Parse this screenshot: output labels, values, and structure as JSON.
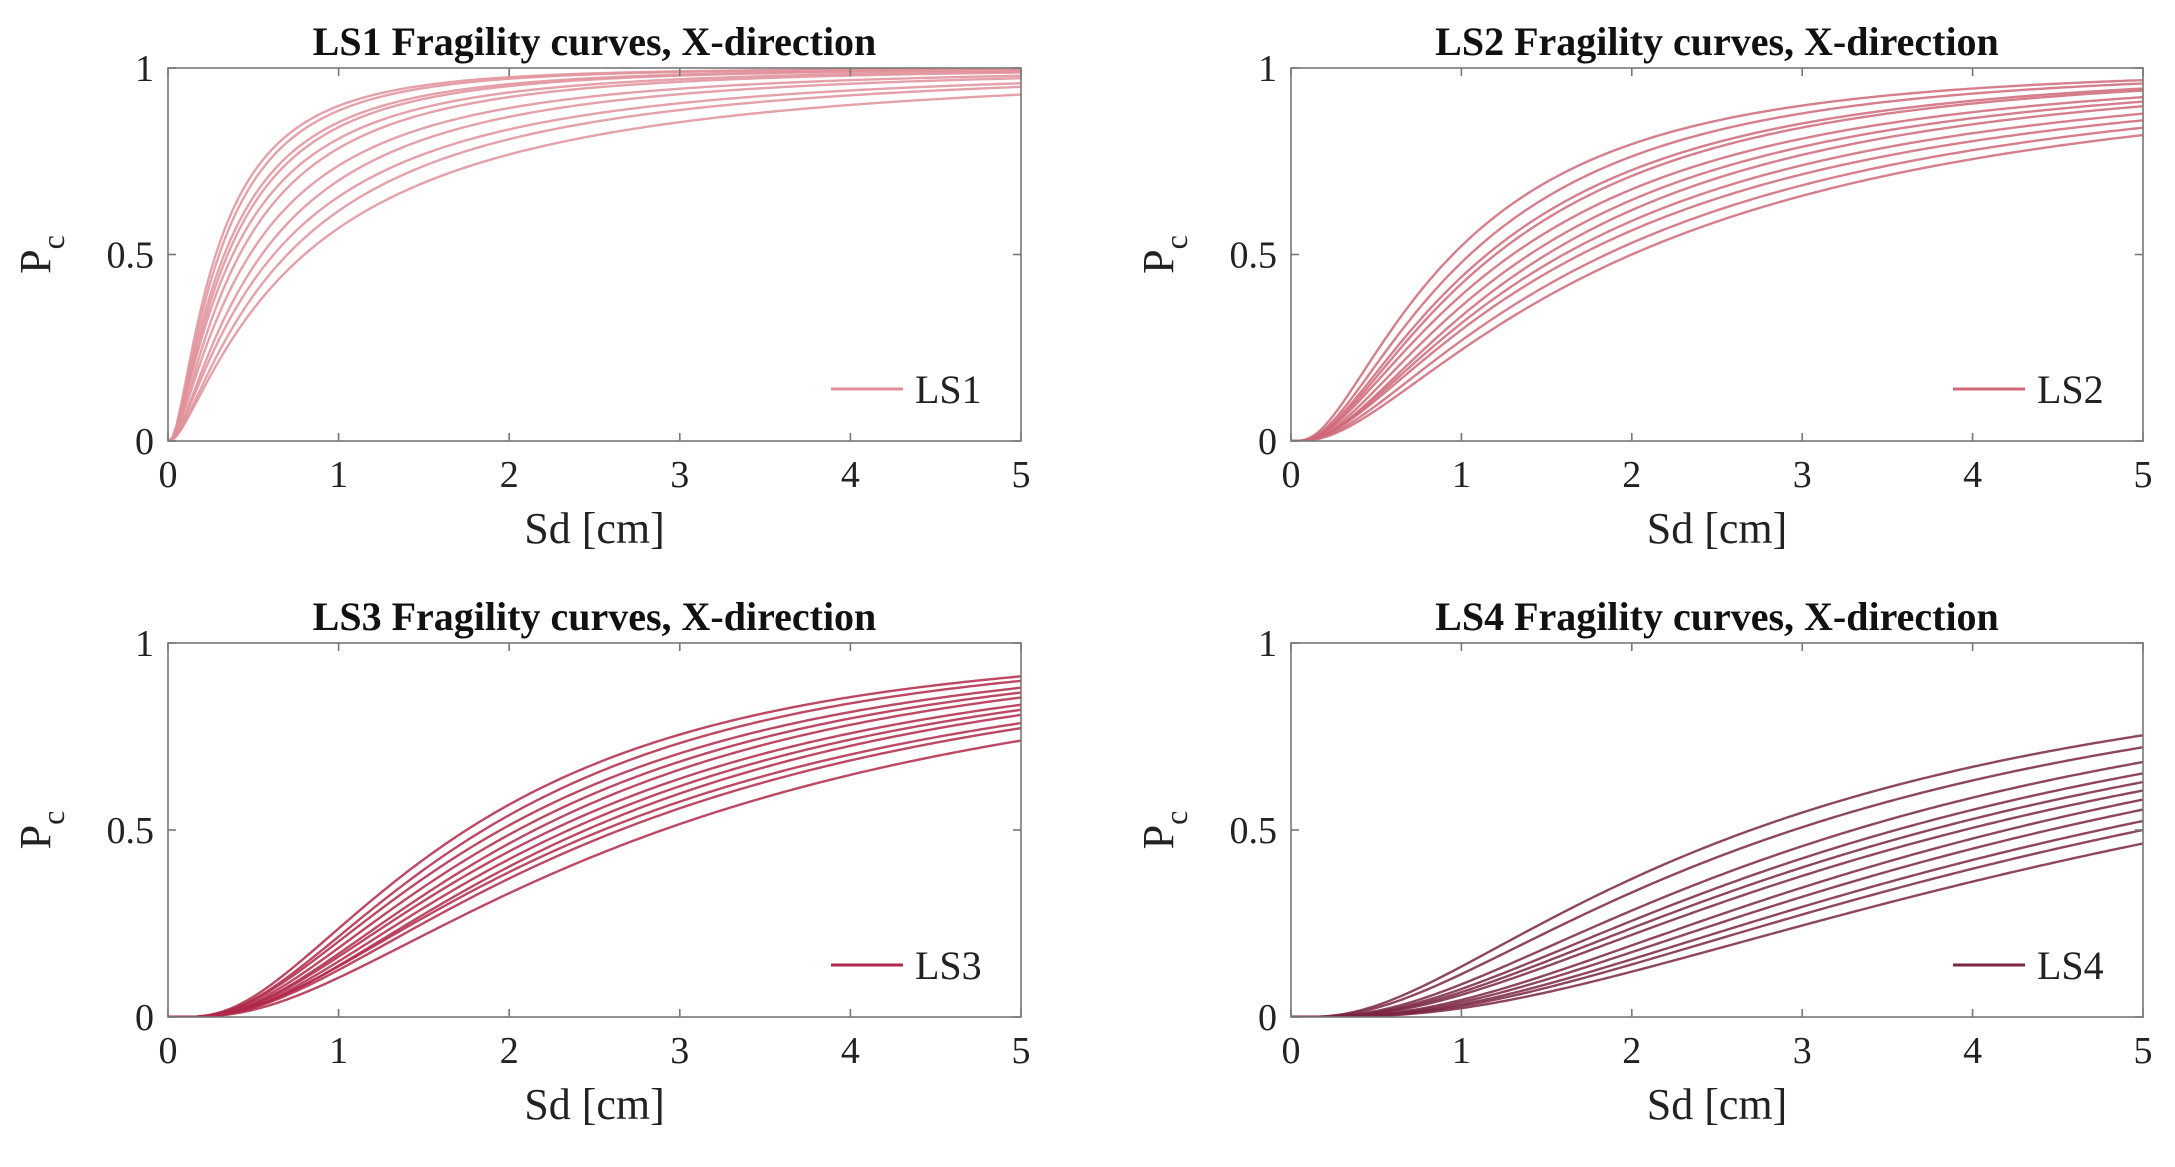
{
  "chart_data": [
    {
      "type": "line",
      "title": "LS1 Fragility curves, X-direction",
      "xlabel": "Sd [cm]",
      "ylabel": "P",
      "ylabel_sub": "c",
      "xlim": [
        0,
        5
      ],
      "ylim": [
        0,
        1
      ],
      "xticks": [
        "0",
        "1",
        "2",
        "3",
        "4",
        "5"
      ],
      "yticks": [
        "0",
        "0.5",
        "1"
      ],
      "legend": "LS1",
      "legend_location": "lower-right",
      "color": "#e0909a",
      "series_note": "lognormal fragility curves, median Sd (cm) and dispersion beta",
      "medians": [
        0.28,
        0.3,
        0.33,
        0.35,
        0.38,
        0.42,
        0.48,
        0.55,
        0.62,
        0.7,
        0.8
      ],
      "betas": [
        1.0,
        1.0,
        1.05,
        1.05,
        1.1,
        1.1,
        1.15,
        1.15,
        1.2,
        1.2,
        1.25
      ]
    },
    {
      "type": "line",
      "title": "LS2 Fragility curves,  X-direction",
      "xlabel": "Sd [cm]",
      "ylabel": "P",
      "ylabel_sub": "c",
      "xlim": [
        0,
        5
      ],
      "ylim": [
        0,
        1
      ],
      "xticks": [
        "0",
        "1",
        "2",
        "3",
        "4",
        "5"
      ],
      "yticks": [
        "0",
        "0.5",
        "1"
      ],
      "legend": "LS2",
      "legend_location": "lower-right",
      "color": "#cf6878",
      "series_note": "lognormal fragility curves, median Sd (cm) and dispersion beta",
      "medians": [
        0.95,
        1.05,
        1.15,
        1.2,
        1.3,
        1.4,
        1.5,
        1.6,
        1.7,
        1.85,
        2.0
      ],
      "betas": [
        0.9,
        0.9,
        0.92,
        0.92,
        0.95,
        0.95,
        0.95,
        0.98,
        1.0,
        1.0,
        1.0
      ]
    },
    {
      "type": "line",
      "title": "LS3 Fragility curves,  X-direction",
      "xlabel": "Sd [cm]",
      "ylabel": "P",
      "ylabel_sub": "c",
      "xlim": [
        0,
        5
      ],
      "ylim": [
        0,
        1
      ],
      "xticks": [
        "0",
        "1",
        "2",
        "3",
        "4",
        "5"
      ],
      "yticks": [
        "0",
        "0.5",
        "1"
      ],
      "legend": "LS3",
      "legend_location": "lower-right",
      "color": "#b02848",
      "series_note": "lognormal fragility curves, median Sd (cm) and dispersion beta",
      "medians": [
        1.75,
        1.85,
        1.95,
        2.05,
        2.15,
        2.25,
        2.35,
        2.45,
        2.55,
        2.65,
        2.9
      ],
      "betas": [
        0.78,
        0.78,
        0.8,
        0.8,
        0.8,
        0.82,
        0.82,
        0.82,
        0.85,
        0.85,
        0.85
      ]
    },
    {
      "type": "line",
      "title": "LS4 Fragility curves,  X-direction",
      "xlabel": "Sd [cm]",
      "ylabel": "P",
      "ylabel_sub": "c",
      "xlim": [
        0,
        5
      ],
      "ylim": [
        0,
        1
      ],
      "xticks": [
        "0",
        "1",
        "2",
        "3",
        "4",
        "5"
      ],
      "yticks": [
        "0",
        "0.5",
        "1"
      ],
      "legend": "LS4",
      "legend_location": "lower-right",
      "color": "#7a2640",
      "series_note": "lognormal fragility curves, median Sd (cm) and dispersion beta",
      "medians": [
        2.7,
        2.95,
        3.3,
        3.55,
        3.75,
        3.95,
        4.2,
        4.45,
        4.75,
        5.0,
        5.4
      ],
      "betas": [
        0.9,
        0.9,
        0.88,
        0.88,
        0.88,
        0.88,
        0.85,
        0.85,
        0.85,
        0.85,
        0.85
      ]
    }
  ]
}
